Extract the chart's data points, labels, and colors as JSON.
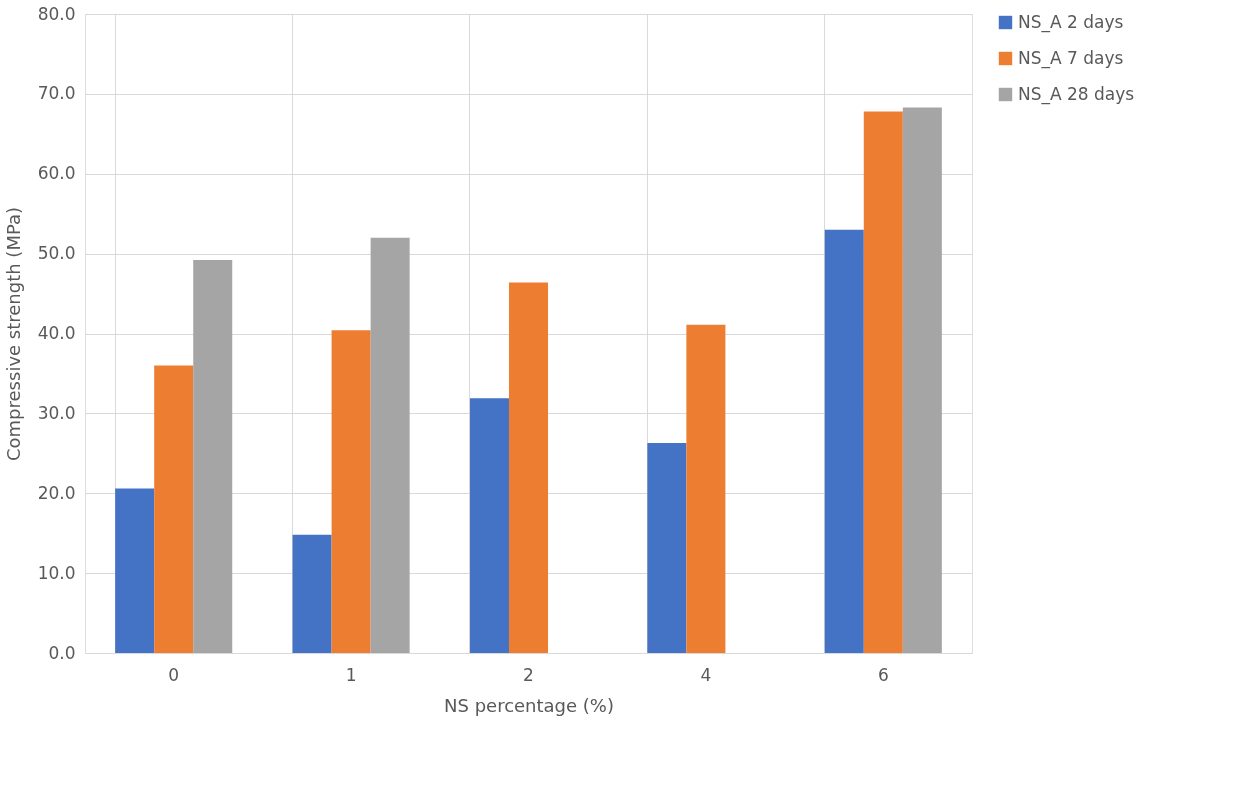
{
  "chart_data": {
    "type": "bar",
    "xlabel": "NS percentage (%)",
    "ylabel": "Compressive strength (MPa)",
    "categories": [
      "0",
      "1",
      "2",
      "4",
      "6"
    ],
    "series": [
      {
        "name": "NS_A 2 days",
        "color": "#4472c4",
        "values": [
          20.6,
          14.8,
          31.9,
          26.3,
          53.0
        ]
      },
      {
        "name": "NS_A 7 days",
        "color": "#ed7d31",
        "values": [
          36.0,
          40.4,
          46.4,
          41.1,
          67.8
        ]
      },
      {
        "name": "NS_A 28 days",
        "color": "#a5a5a5",
        "values": [
          49.2,
          52.0,
          null,
          null,
          68.3
        ]
      }
    ],
    "ylim": [
      0,
      80
    ],
    "yticks": [
      {
        "value": 0,
        "label": "0.0"
      },
      {
        "value": 10,
        "label": "10.0"
      },
      {
        "value": 20,
        "label": "20.0"
      },
      {
        "value": 30,
        "label": "30.0"
      },
      {
        "value": 40,
        "label": "40.0"
      },
      {
        "value": 50,
        "label": "50.0"
      },
      {
        "value": 60,
        "label": "60.0"
      },
      {
        "value": 70,
        "label": "70.0"
      },
      {
        "value": 80,
        "label": "80.0"
      }
    ],
    "grid": true,
    "legend": "right"
  }
}
